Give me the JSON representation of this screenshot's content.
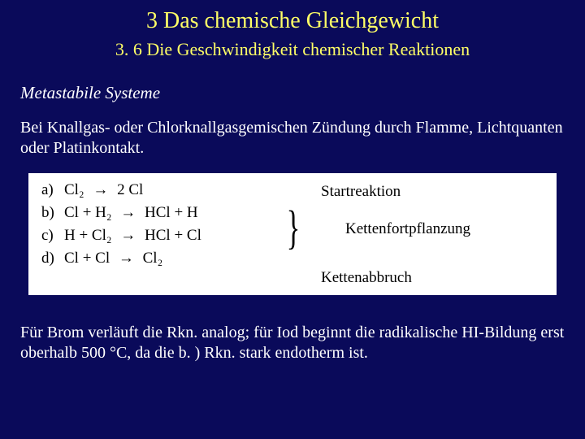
{
  "title": "3 Das chemische Gleichgewicht",
  "subtitle": "3. 6 Die Geschwindigkeit chemischer Reaktionen",
  "section_label": "Metastabile Systeme",
  "intro_text": "Bei Knallgas- oder Chlorknallgasgemischen Zündung durch Flamme, Lichtquanten oder Platinkontakt.",
  "reactions": {
    "background_color": "#ffffff",
    "text_color": "#000000",
    "font_size": 19,
    "rows": [
      {
        "label": "a)",
        "lhs": "Cl₂",
        "rhs": "2 Cl"
      },
      {
        "label": "b)",
        "lhs": "Cl + H₂",
        "rhs": "HCl + H"
      },
      {
        "label": "c)",
        "lhs": "H + Cl₂",
        "rhs": "HCl + Cl"
      },
      {
        "label": "d)",
        "lhs": "Cl + Cl",
        "rhs": "Cl₂"
      }
    ],
    "arrow_glyph": "→",
    "descriptions": {
      "start": "Startreaktion",
      "chain": "Kettenfortpflanzung",
      "break": "Kettenabbruch"
    }
  },
  "footer_text": "Für Brom verläuft die Rkn. analog; für Iod beginnt die radikalische HI-Bildung erst oberhalb 500 °C, da die b. ) Rkn. stark endotherm ist.",
  "colors": {
    "slide_bg": "#0a0a5a",
    "heading": "#ffff66",
    "body": "#ffffff"
  }
}
